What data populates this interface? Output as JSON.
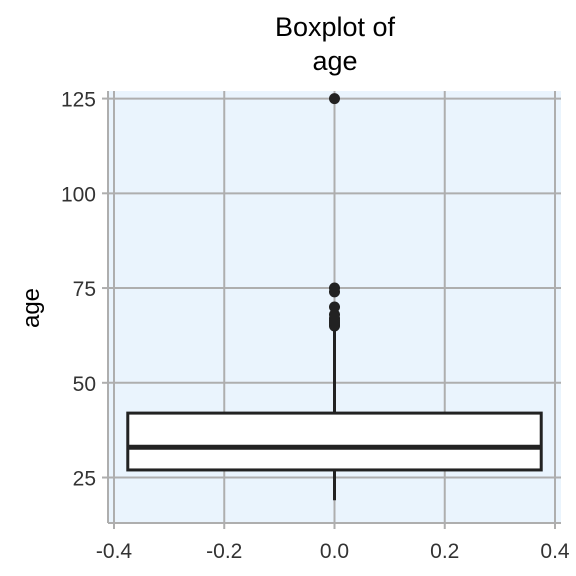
{
  "chart_data": {
    "type": "boxplot",
    "title_lines": [
      "Boxplot of",
      "age"
    ],
    "xlabel": "",
    "ylabel": "age",
    "xlim": [
      -0.4,
      0.4
    ],
    "ylim": [
      13,
      127
    ],
    "x_ticks": [
      -0.4,
      -0.2,
      0.0,
      0.2,
      0.4
    ],
    "x_tick_labels": [
      "-0.4",
      "-0.2",
      "0.0",
      "0.2",
      "0.4"
    ],
    "y_ticks": [
      25,
      50,
      75,
      100,
      125
    ],
    "y_tick_labels": [
      "25",
      "50",
      "75",
      "100",
      "125"
    ],
    "grid": true,
    "box": {
      "x_center": 0.0,
      "x_min": -0.375,
      "x_max": 0.375,
      "q1": 27,
      "median": 33,
      "q3": 42,
      "whisker_low": 19,
      "whisker_high": 65
    },
    "outliers": [
      65,
      65.5,
      66,
      66.5,
      67,
      68,
      70,
      74,
      75,
      125
    ]
  },
  "colors": {
    "panel_bg": "#eaf4fd",
    "grid": "#aeaeae",
    "box_fill": "#ffffff",
    "box_stroke": "#222222",
    "median": "#222222",
    "outlier": "#222222"
  }
}
